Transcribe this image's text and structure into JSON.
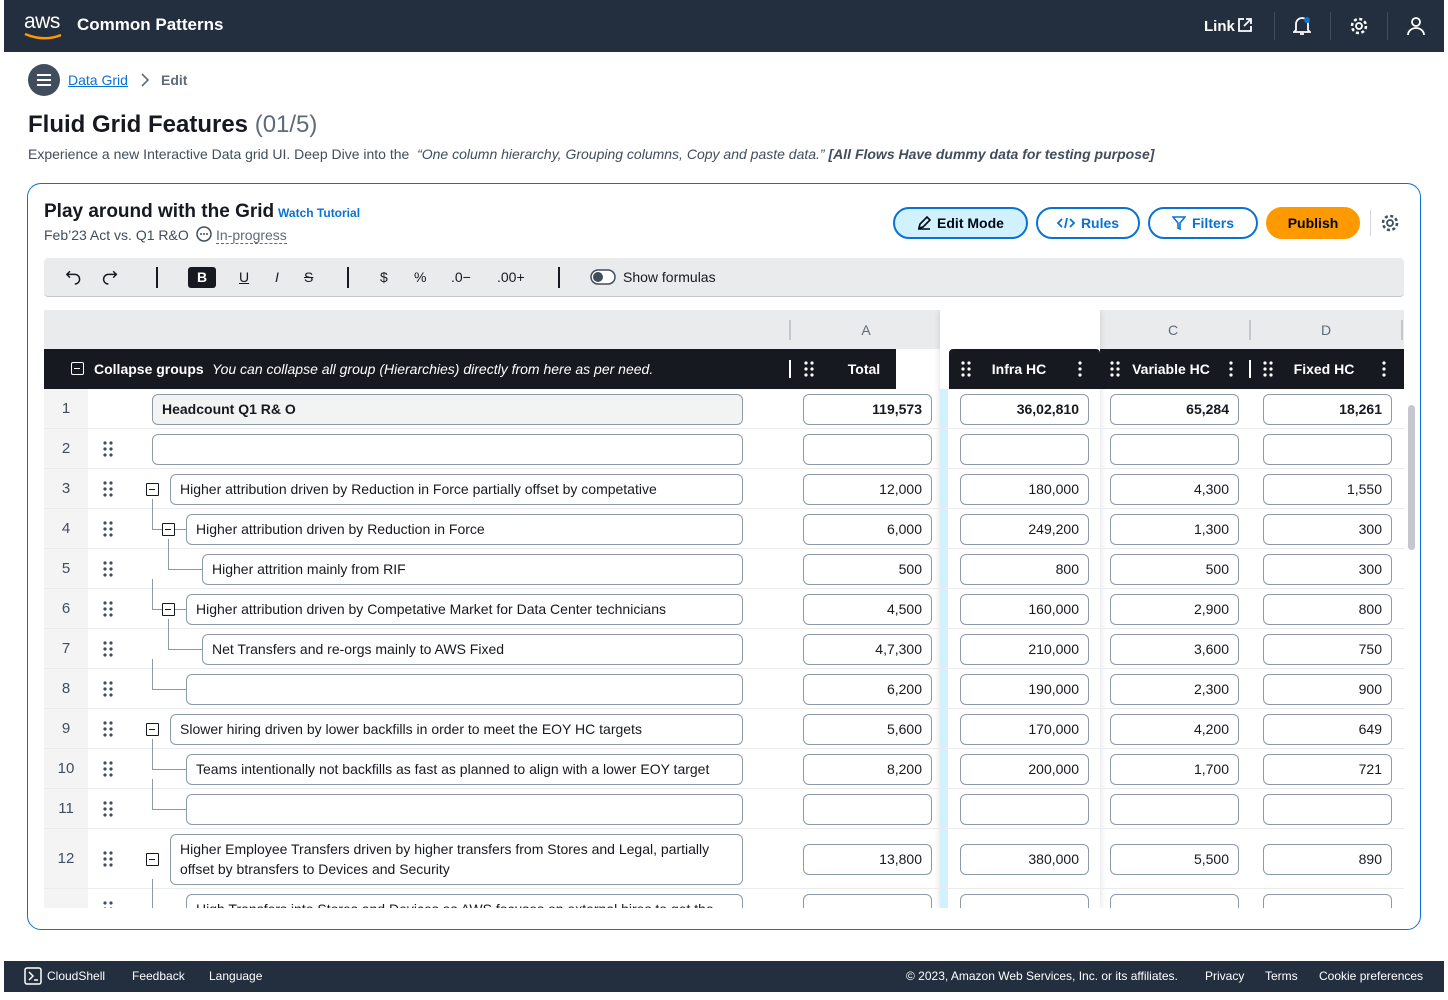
{
  "nav": {
    "logo": "aws",
    "title": "Common Patterns",
    "link": "Link"
  },
  "breadcrumb": [
    "Data Grid",
    "Edit"
  ],
  "header": {
    "title": "Fluid Grid Features",
    "count": "(01/5)",
    "description": "Experience a new Interactive Data grid UI. Deep Dive into the",
    "quote": "“One column hierarchy, Grouping columns, Copy and paste data.”",
    "note": "[All Flows Have dummy data for testing purpose]"
  },
  "panel": {
    "title": "Play around with the Grid",
    "tutorial": "Watch Tutorial",
    "subtitle": "Feb’23 Act vs. Q1 R&O",
    "status": "In-progress",
    "buttons": [
      "Edit Mode",
      "Rules",
      "Filters",
      "Publish"
    ]
  },
  "toolbar": {
    "format": [
      "B",
      "U",
      "I",
      "S"
    ],
    "number": [
      "$",
      "%",
      ".0−",
      ".00+"
    ],
    "toggle": "Show formulas"
  },
  "grid": {
    "collapse": "Collapse groups",
    "hint": "You can collapse all group (Hierarchies) directly from here as per need.",
    "columns": [
      {
        "letter": "A",
        "name": "Total"
      },
      {
        "name": "Infra HC"
      },
      {
        "letter": "C",
        "name": "Variable HC"
      },
      {
        "letter": "D",
        "name": "Fixed HC"
      }
    ],
    "rows": [
      {
        "number": "1",
        "level": 0,
        "label": "Headcount Q1 R& O",
        "values": [
          "119,573",
          "36,02,810",
          "65,284",
          "18,261"
        ]
      },
      {
        "number": "2",
        "level": 0,
        "label": null,
        "values": [
          null,
          null,
          null,
          null
        ]
      },
      {
        "number": "3",
        "level": 1,
        "collapsible": true,
        "label": "Higher attribution driven by Reduction in Force partially offset by competative",
        "values": [
          "12,000",
          "180,000",
          "4,300",
          "1,550"
        ]
      },
      {
        "number": "4",
        "level": 2,
        "collapsible": true,
        "label": "Higher attribution driven by Reduction in Force",
        "values": [
          "6,000",
          "249,200",
          "1,300",
          "300"
        ]
      },
      {
        "number": "5",
        "level": 3,
        "label": "Higher attrition mainly from RIF",
        "values": [
          "500",
          "800",
          "500",
          "300"
        ]
      },
      {
        "number": "6",
        "level": 2,
        "collapsible": true,
        "label": "Higher attribution driven by Competative Market for Data Center technicians",
        "values": [
          "4,500",
          "160,000",
          "2,900",
          "800"
        ]
      },
      {
        "number": "7",
        "level": 3,
        "label": "Net Transfers and re-orgs mainly to AWS Fixed",
        "values": [
          "4,7,300",
          "210,000",
          "3,600",
          "750"
        ]
      },
      {
        "number": "8",
        "level": 2,
        "label": null,
        "values": [
          "6,200",
          "190,000",
          "2,300",
          "900"
        ]
      },
      {
        "number": "9",
        "level": 1,
        "collapsible": true,
        "label": "Slower hiring driven by lower backfills in order to meet the EOY HC targets",
        "values": [
          "5,600",
          "170,000",
          "4,200",
          "649"
        ]
      },
      {
        "number": "10",
        "level": 2,
        "label": "Teams intentionally not backfills as fast as planned to align with a lower EOY target",
        "values": [
          "8,200",
          "200,000",
          "1,700",
          "721"
        ]
      },
      {
        "number": "11",
        "level": 2,
        "label": null,
        "values": [
          null,
          null,
          null,
          null
        ]
      },
      {
        "number": "12",
        "level": 1,
        "collapsible": true,
        "label": "Higher Employee Transfers driven by higher transfers from Stores and Legal, partially offset by btransfers to Devices and Security",
        "values": [
          "13,800",
          "380,000",
          "5,500",
          "890"
        ]
      },
      {
        "level": 2,
        "label": "High Transfers into Stores and Devices as AWS focuses on external hires to get the",
        "values": [
          null,
          null,
          null,
          null
        ]
      }
    ]
  },
  "footer": {
    "links": [
      "CloudShell",
      "Feedback",
      "Language"
    ],
    "copyright": "© 2023, Amazon Web Services, Inc. or its affiliates.",
    "legal": [
      "Privacy",
      "Terms",
      "Cookie preferences"
    ]
  }
}
